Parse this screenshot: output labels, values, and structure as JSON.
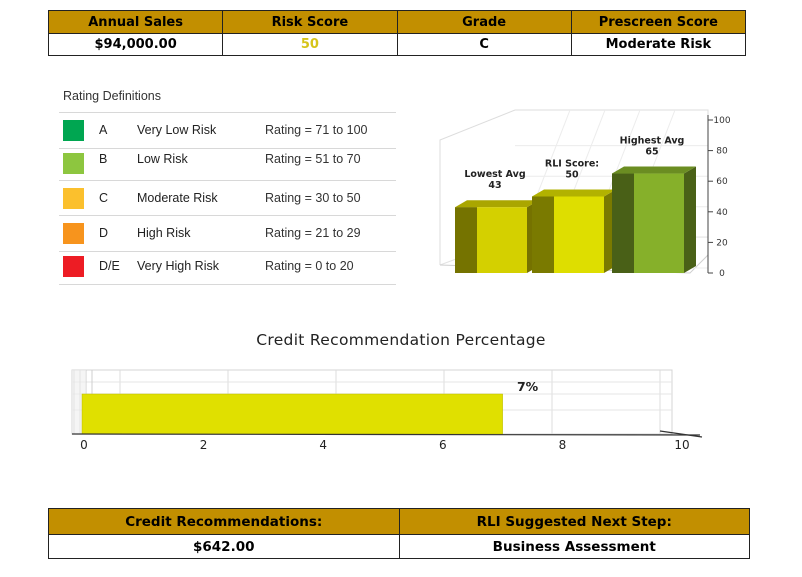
{
  "summary": {
    "headers": [
      "Annual Sales",
      "Risk Score",
      "Grade",
      "Prescreen Score"
    ],
    "values": [
      "$94,000.00",
      "50",
      "C",
      "Moderate Risk"
    ]
  },
  "legend": {
    "title": "Rating Definitions",
    "rows": [
      {
        "grade": "A",
        "label": "Very Low Risk",
        "range": "Rating = 71 to 100",
        "color": "#00a651"
      },
      {
        "grade": "B",
        "label": "Low Risk",
        "range": "Rating = 51 to 70",
        "color": "#8dc63f"
      },
      {
        "grade": "C",
        "label": "Moderate Risk",
        "range": "Rating = 30 to 50",
        "color": "#fbc02d"
      },
      {
        "grade": "D",
        "label": "High Risk",
        "range": "Rating = 21 to 29",
        "color": "#f7941d"
      },
      {
        "grade": "D/E",
        "label": "Very High Risk",
        "range": "Rating = 0 to 20",
        "color": "#ed1c24"
      }
    ]
  },
  "chart_data": [
    {
      "type": "bar",
      "categories": [
        "Lowest Avg",
        "RLI Score:",
        "Highest Avg"
      ],
      "values": [
        43,
        50,
        65
      ],
      "title": "",
      "xlabel": "",
      "ylabel": "",
      "ylim": [
        0,
        100
      ],
      "yticks": [
        "0",
        "20",
        "40",
        "60",
        "80",
        "100"
      ],
      "colors": [
        "#d4d000",
        "#dede00",
        "#86b02a"
      ],
      "style": "3d"
    },
    {
      "type": "bar",
      "orientation": "horizontal",
      "title": "Credit Recommendation Percentage",
      "categories": [
        ""
      ],
      "values": [
        7
      ],
      "value_label": "7%",
      "xlim": [
        0,
        10
      ],
      "xticks": [
        "0",
        "2",
        "4",
        "6",
        "8",
        "10"
      ],
      "color": "#e0e000"
    }
  ],
  "bottom": {
    "headers": [
      "Credit Recommendations:",
      "RLI Suggested Next Step:"
    ],
    "values": [
      "$642.00",
      "Business Assessment"
    ]
  }
}
